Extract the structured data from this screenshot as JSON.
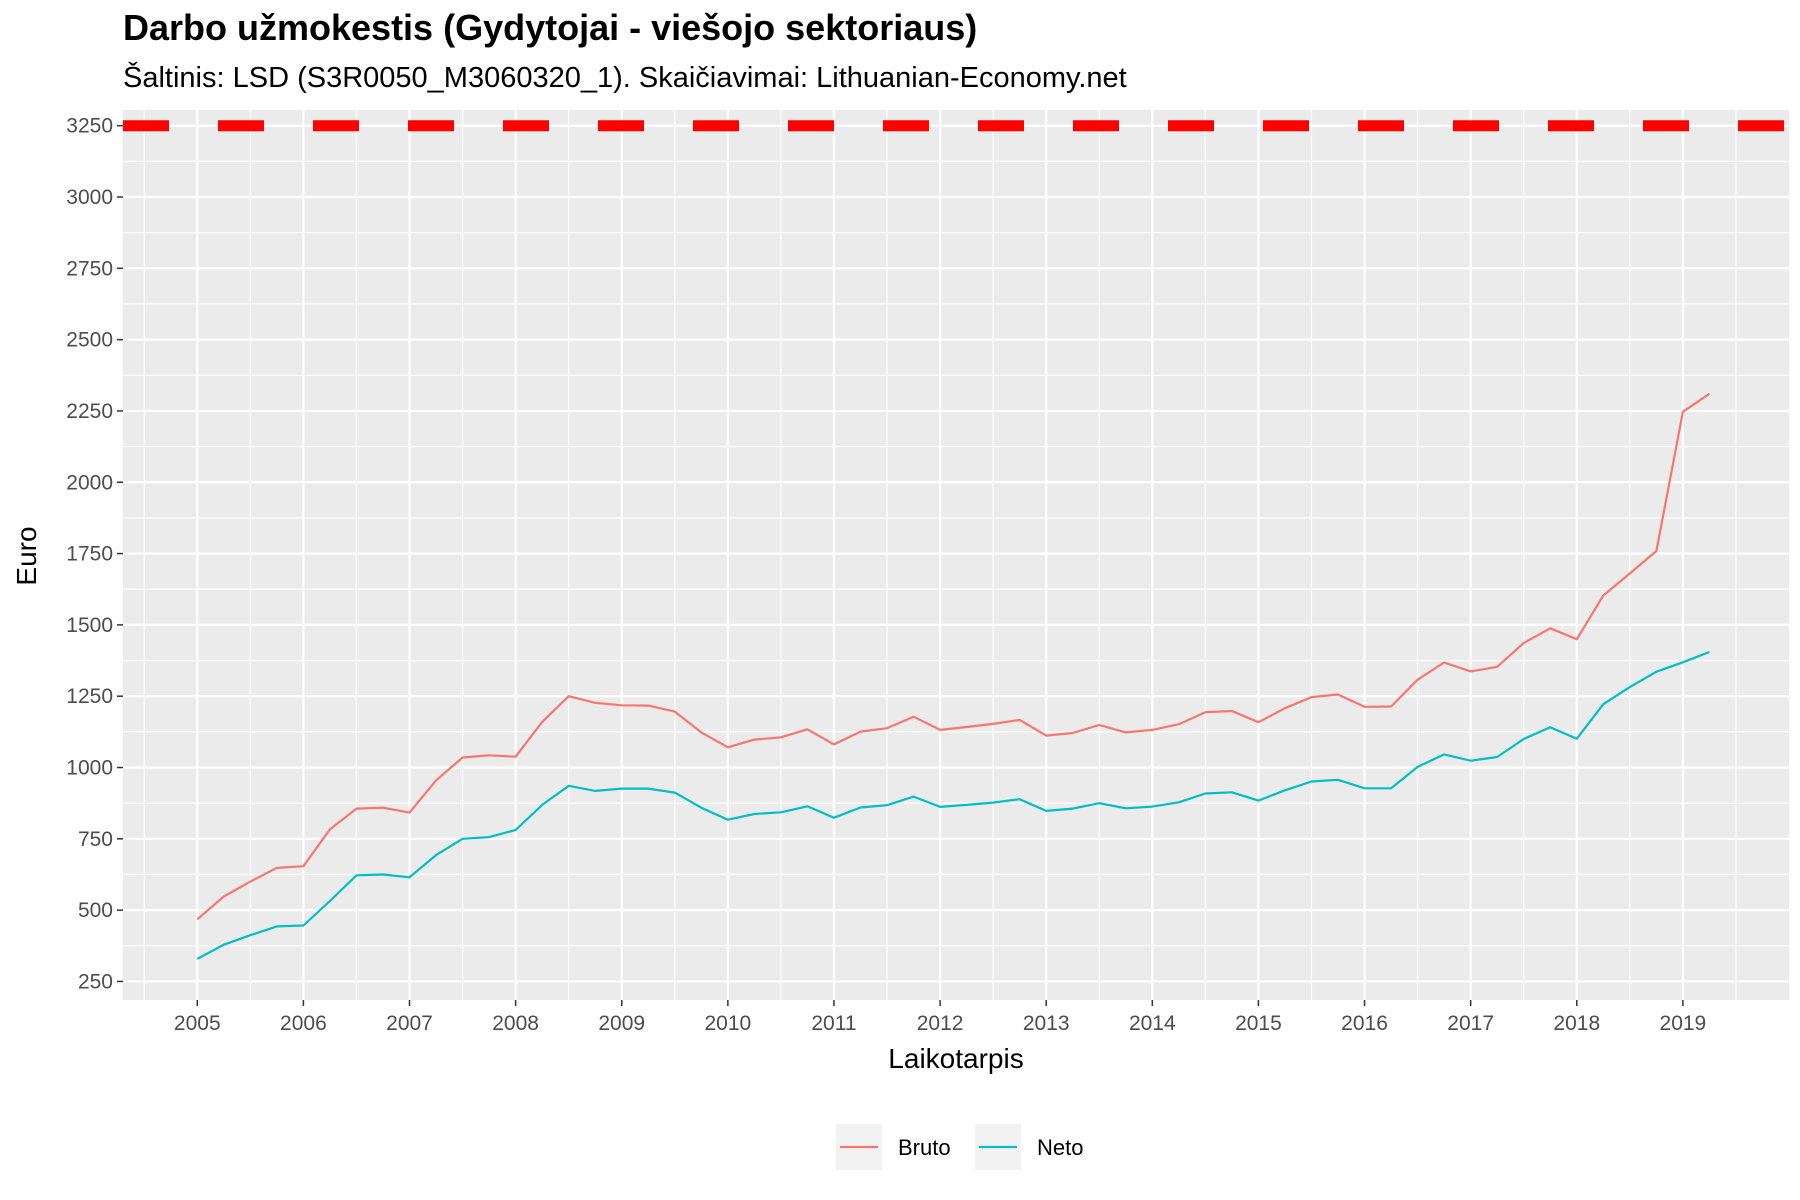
{
  "chart_data": {
    "type": "line",
    "title": "Darbo užmokestis (Gydytojai - viešojo sektoriaus)",
    "subtitle": "Šaltinis: LSD (S3R0050_M3060320_1). Skaičiavimai: Lithuanian-Economy.net",
    "xlabel": "Laikotarpis",
    "ylabel": "Euro",
    "xlim": [
      2004.3,
      2020.0
    ],
    "ylim": [
      185,
      3305
    ],
    "x_ticks": [
      "2005",
      "2006",
      "2007",
      "2008",
      "2009",
      "2010",
      "2011",
      "2012",
      "2013",
      "2014",
      "2015",
      "2016",
      "2017",
      "2018",
      "2019"
    ],
    "y_ticks": [
      "250",
      "500",
      "750",
      "1000",
      "1250",
      "1500",
      "1750",
      "2000",
      "2250",
      "2500",
      "2750",
      "3000",
      "3250"
    ],
    "grid": true,
    "legend_position": "bottom",
    "reference_line": {
      "y": 3250,
      "color": "#ff0000",
      "style": "dashed"
    },
    "x": [
      "2005 Q1",
      "2005 Q2",
      "2005 Q3",
      "2005 Q4",
      "2006 Q1",
      "2006 Q2",
      "2006 Q3",
      "2006 Q4",
      "2007 Q1",
      "2007 Q2",
      "2007 Q3",
      "2007 Q4",
      "2008 Q1",
      "2008 Q2",
      "2008 Q3",
      "2008 Q4",
      "2009 Q1",
      "2009 Q2",
      "2009 Q3",
      "2009 Q4",
      "2010 Q1",
      "2010 Q2",
      "2010 Q3",
      "2010 Q4",
      "2011 Q1",
      "2011 Q2",
      "2011 Q3",
      "2011 Q4",
      "2012 Q1",
      "2012 Q2",
      "2012 Q3",
      "2012 Q4",
      "2013 Q1",
      "2013 Q2",
      "2013 Q3",
      "2013 Q4",
      "2014 Q1",
      "2014 Q2",
      "2014 Q3",
      "2014 Q4",
      "2015 Q1",
      "2015 Q2",
      "2015 Q3",
      "2015 Q4",
      "2016 Q1",
      "2016 Q2",
      "2016 Q3",
      "2016 Q4",
      "2017 Q1",
      "2017 Q2",
      "2017 Q3",
      "2017 Q4",
      "2018 Q1",
      "2018 Q2",
      "2018 Q3",
      "2018 Q4",
      "2019 Q1",
      "2019 Q2"
    ],
    "series": [
      {
        "name": "Bruto",
        "color": "#f8766d",
        "values": [
          468,
          548,
          600,
          648,
          654,
          783,
          856,
          859,
          842,
          955,
          1035,
          1043,
          1038,
          1160,
          1250,
          1227,
          1218,
          1217,
          1196,
          1123,
          1071,
          1098,
          1106,
          1134,
          1081,
          1126,
          1138,
          1178,
          1132,
          1142,
          1153,
          1167,
          1112,
          1121,
          1149,
          1123,
          1132,
          1152,
          1194,
          1198,
          1159,
          1208,
          1247,
          1256,
          1213,
          1214,
          1308,
          1368,
          1337,
          1353,
          1436,
          1488,
          1450,
          1603,
          1680,
          1759,
          2247,
          2310
        ]
      },
      {
        "name": "Neto",
        "color": "#00bfc4",
        "values": [
          329,
          379,
          412,
          443,
          446,
          532,
          622,
          625,
          615,
          693,
          750,
          756,
          781,
          869,
          936,
          918,
          926,
          926,
          912,
          859,
          817,
          837,
          843,
          864,
          824,
          860,
          868,
          898,
          862,
          869,
          877,
          889,
          848,
          856,
          875,
          857,
          863,
          878,
          909,
          913,
          884,
          920,
          951,
          957,
          927,
          927,
          1002,
          1046,
          1024,
          1037,
          1100,
          1141,
          1101,
          1222,
          1282,
          1336,
          1369,
          1405
        ]
      }
    ]
  }
}
